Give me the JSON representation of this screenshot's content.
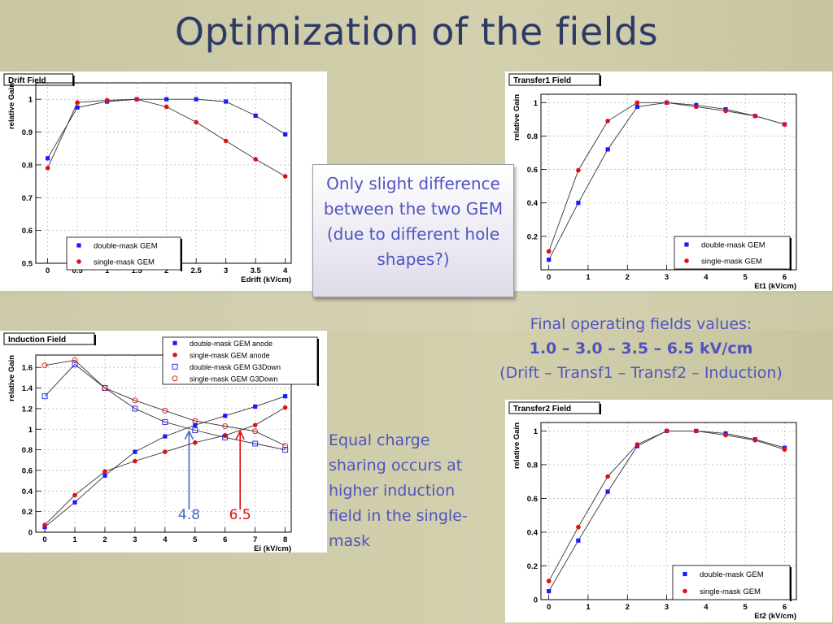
{
  "slide": {
    "title": "Optimization of the fields",
    "callout": "Only slight difference between the two GEM (due to different hole shapes?)",
    "final_fields": {
      "line1": "Final operating fields values:",
      "line2": "1.0 – 3.0 – 3.5 – 6.5 kV/cm",
      "line3": "(Drift – Transf1 – Transf2 – Induction)"
    },
    "equal_charge_note": "Equal charge sharing occurs at higher induction field in the single-mask"
  },
  "colors": {
    "background": "#c9c6a2",
    "title": "#2e3a66",
    "note_text": "#5054c0",
    "double_mask": "#1a1aff",
    "single_mask": "#e01010",
    "arrow_blue": "#4a66c8",
    "arrow_red": "#dd1111"
  },
  "chart_data": [
    {
      "id": "drift",
      "type": "line",
      "title": "Drift Field",
      "xlabel": "Edrift (kV/cm)",
      "ylabel": "relative Gain",
      "xlim": [
        -0.2,
        4.1
      ],
      "ylim": [
        0.5,
        1.05
      ],
      "xticks": [
        0,
        0.5,
        1,
        1.5,
        2,
        2.5,
        3,
        3.5,
        4
      ],
      "xtick_labels": [
        "0",
        "0.5",
        "1",
        "1.5",
        "2",
        "2.5",
        "3",
        "3.5",
        "4"
      ],
      "yticks": [
        0.5,
        0.6,
        0.7,
        0.8,
        0.9,
        1
      ],
      "ytick_labels": [
        "0.5",
        "0.6",
        "0.7",
        "0.8",
        "0.9",
        "1"
      ],
      "grid": true,
      "legend": "bottom-center",
      "series": [
        {
          "name": "double-mask GEM",
          "marker": "square",
          "color": "#1a1aff",
          "x": [
            0,
            0.5,
            1,
            1.5,
            2,
            2.5,
            3,
            3.5,
            4
          ],
          "y": [
            0.82,
            0.975,
            0.993,
            1.0,
            1.0,
            1.0,
            0.993,
            0.95,
            0.893
          ]
        },
        {
          "name": "single-mask GEM",
          "marker": "circle",
          "color": "#e01010",
          "x": [
            0,
            0.5,
            1,
            1.5,
            2,
            2.5,
            3,
            3.5,
            4
          ],
          "y": [
            0.79,
            0.99,
            0.997,
            1.0,
            0.977,
            0.93,
            0.873,
            0.817,
            0.765
          ]
        }
      ]
    },
    {
      "id": "transfer1",
      "type": "line",
      "title": "Transfer1 Field",
      "xlabel": "Et1 (kV/cm)",
      "ylabel": "relative Gain",
      "xlim": [
        -0.2,
        6.3
      ],
      "ylim": [
        0,
        1.05
      ],
      "xticks": [
        0,
        1,
        2,
        3,
        4,
        5,
        6
      ],
      "xtick_labels": [
        "0",
        "1",
        "2",
        "3",
        "4",
        "5",
        "6"
      ],
      "yticks": [
        0.2,
        0.4,
        0.6,
        0.8,
        1
      ],
      "ytick_labels": [
        "0.2",
        "0.4",
        "0.6",
        "0.8",
        "1"
      ],
      "grid": true,
      "legend": "bottom-right",
      "series": [
        {
          "name": "double-mask GEM",
          "marker": "square",
          "color": "#1a1aff",
          "x": [
            0,
            0.75,
            1.5,
            2.25,
            3,
            3.75,
            4.5,
            5.25,
            6
          ],
          "y": [
            0.06,
            0.4,
            0.72,
            0.975,
            1.0,
            0.985,
            0.96,
            0.92,
            0.87
          ]
        },
        {
          "name": "single-mask GEM",
          "marker": "circle",
          "color": "#e01010",
          "x": [
            0,
            0.75,
            1.5,
            2.25,
            3,
            3.75,
            4.5,
            5.25,
            6
          ],
          "y": [
            0.11,
            0.595,
            0.89,
            1.0,
            1.0,
            0.975,
            0.95,
            0.92,
            0.87
          ]
        }
      ]
    },
    {
      "id": "induction",
      "type": "line",
      "title": "Induction Field",
      "xlabel": "Ei (kV/cm)",
      "ylabel": "relative Gain",
      "xlim": [
        -0.3,
        8.2
      ],
      "ylim": [
        0,
        1.72
      ],
      "xticks": [
        0,
        1,
        2,
        3,
        4,
        5,
        6,
        7,
        8
      ],
      "xtick_labels": [
        "0",
        "1",
        "2",
        "3",
        "4",
        "5",
        "6",
        "7",
        "8"
      ],
      "yticks": [
        0,
        0.2,
        0.4,
        0.6,
        0.8,
        1,
        1.2,
        1.4,
        1.6
      ],
      "ytick_labels": [
        "0",
        "0.2",
        "0.4",
        "0.6",
        "0.8",
        "1",
        "1.2",
        "1.4",
        "1.6"
      ],
      "grid": true,
      "legend": "top-right",
      "annotations": [
        {
          "text": "4.8",
          "x": 4.8,
          "color": "#4a66c8"
        },
        {
          "text": "6.5",
          "x": 6.5,
          "color": "#dd1111"
        }
      ],
      "series": [
        {
          "name": "double-mask GEM anode",
          "marker": "square",
          "color": "#1a1aff",
          "x": [
            0,
            1,
            2,
            3,
            4,
            5,
            6,
            7,
            8
          ],
          "y": [
            0.05,
            0.29,
            0.55,
            0.78,
            0.93,
            1.04,
            1.13,
            1.22,
            1.32
          ]
        },
        {
          "name": "single-mask GEM anode",
          "marker": "circle",
          "color": "#e01010",
          "x": [
            0,
            1,
            2,
            3,
            4,
            5,
            6,
            7,
            8
          ],
          "y": [
            0.07,
            0.36,
            0.59,
            0.69,
            0.78,
            0.87,
            0.94,
            1.04,
            1.21
          ]
        },
        {
          "name": "double-mask GEM G3Down",
          "marker": "square-open",
          "color": "#1a1aff",
          "x": [
            0,
            1,
            2,
            3,
            4,
            5,
            6,
            7,
            8
          ],
          "y": [
            1.32,
            1.63,
            1.4,
            1.2,
            1.07,
            0.99,
            0.92,
            0.86,
            0.8
          ]
        },
        {
          "name": "single-mask GEM G3Down",
          "marker": "circle-open",
          "color": "#e01010",
          "x": [
            0,
            1,
            2,
            3,
            4,
            5,
            6,
            7,
            8
          ],
          "y": [
            1.62,
            1.67,
            1.4,
            1.28,
            1.18,
            1.08,
            1.03,
            0.98,
            0.84
          ]
        }
      ]
    },
    {
      "id": "transfer2",
      "type": "line",
      "title": "Transfer2 Field",
      "xlabel": "Et2 (kV/cm)",
      "ylabel": "relative Gain",
      "xlim": [
        -0.2,
        6.3
      ],
      "ylim": [
        0,
        1.05
      ],
      "xticks": [
        0,
        1,
        2,
        3,
        4,
        5,
        6
      ],
      "xtick_labels": [
        "0",
        "1",
        "2",
        "3",
        "4",
        "5",
        "6"
      ],
      "yticks": [
        0,
        0.2,
        0.4,
        0.6,
        0.8,
        1
      ],
      "ytick_labels": [
        "0",
        "0.2",
        "0.4",
        "0.6",
        "0.8",
        "1"
      ],
      "grid": true,
      "legend": "bottom-right",
      "series": [
        {
          "name": "double-mask GEM",
          "marker": "square",
          "color": "#1a1aff",
          "x": [
            0,
            0.75,
            1.5,
            2.25,
            3,
            3.75,
            4.5,
            5.25,
            6
          ],
          "y": [
            0.05,
            0.35,
            0.64,
            0.91,
            1.0,
            1.0,
            0.985,
            0.95,
            0.9
          ]
        },
        {
          "name": "single-mask GEM",
          "marker": "circle",
          "color": "#e01010",
          "x": [
            0,
            0.75,
            1.5,
            2.25,
            3,
            3.75,
            4.5,
            5.25,
            6
          ],
          "y": [
            0.11,
            0.43,
            0.73,
            0.92,
            1.0,
            1.0,
            0.975,
            0.945,
            0.89
          ]
        }
      ]
    }
  ]
}
